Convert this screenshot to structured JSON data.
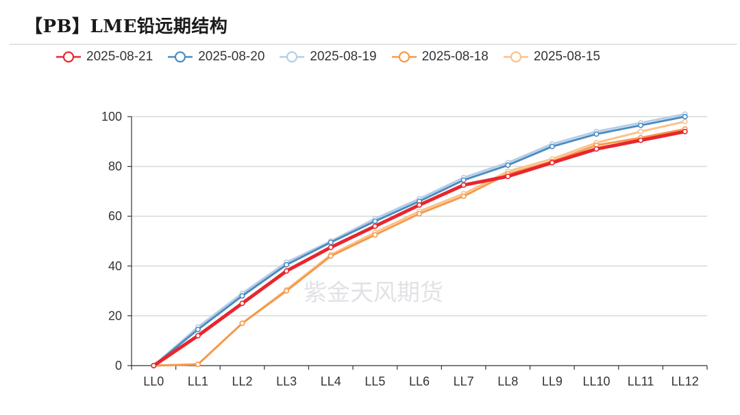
{
  "title": "【PB】LME铅远期结构",
  "watermark": "紫金天风期货",
  "chart_data": {
    "type": "line",
    "title": "【PB】LME铅远期结构",
    "xlabel": "",
    "ylabel": "",
    "categories": [
      "LL0",
      "LL1",
      "LL2",
      "LL3",
      "LL4",
      "LL5",
      "LL6",
      "LL7",
      "LL8",
      "LL9",
      "LL10",
      "LL11",
      "LL12"
    ],
    "ylim": [
      0,
      100
    ],
    "yticks": [
      0,
      20,
      40,
      60,
      80,
      100
    ],
    "grid": true,
    "legend": "top-left",
    "series": [
      {
        "name": "2025-08-15",
        "color": "#f9c28c",
        "values": [
          0,
          0.5,
          17,
          30.5,
          44.5,
          53.5,
          62,
          69,
          78,
          83,
          89.5,
          94,
          98
        ]
      },
      {
        "name": "2025-08-18",
        "color": "#f59a4a",
        "values": [
          0,
          0.5,
          17,
          30,
          44,
          52.5,
          61,
          68,
          77,
          82,
          88.5,
          91.5,
          95
        ]
      },
      {
        "name": "2025-08-19",
        "color": "#b5cde6",
        "values": [
          0,
          15.5,
          29,
          41.5,
          50,
          59,
          67,
          75.5,
          81.5,
          89,
          94,
          97.5,
          101
        ]
      },
      {
        "name": "2025-08-20",
        "color": "#4a8cc2",
        "values": [
          0,
          14.5,
          28,
          40.5,
          49.5,
          58,
          66,
          74.5,
          80.5,
          88,
          93,
          96.5,
          100
        ]
      },
      {
        "name": "2025-08-21",
        "color": "#e8262d",
        "values": [
          0,
          12,
          25,
          38,
          47.5,
          56,
          64.5,
          72.5,
          76,
          81.5,
          87,
          90.5,
          94
        ]
      }
    ],
    "legend_order": [
      "2025-08-21",
      "2025-08-20",
      "2025-08-19",
      "2025-08-18",
      "2025-08-15"
    ]
  }
}
